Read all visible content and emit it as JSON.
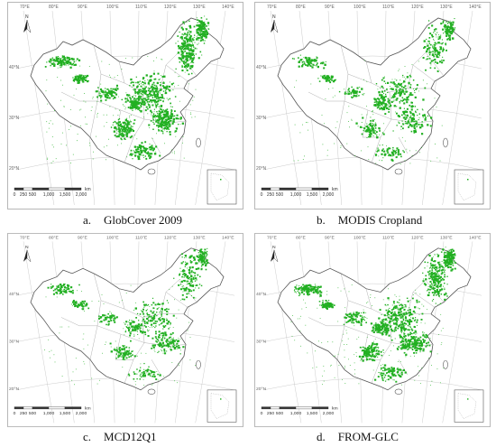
{
  "panels": [
    {
      "letter": "a.",
      "title": "GlobCover 2009",
      "north_label": "N",
      "scale_labels": [
        "0",
        "250",
        "500",
        "1,000",
        "1,500",
        "2,000"
      ],
      "scale_unit": "km",
      "lon_labels": [
        "70°E",
        "80°E",
        "90°E",
        "100°E",
        "110°E",
        "120°E",
        "130°E",
        "140°E"
      ],
      "lat_labels": [
        "40°N",
        "30°N",
        "20°N"
      ],
      "cropland_color": "#22b022",
      "density": "high"
    },
    {
      "letter": "b.",
      "title": "MODIS Cropland",
      "north_label": "N",
      "scale_labels": [
        "0",
        "250",
        "500",
        "1,000",
        "1,500",
        "2,000"
      ],
      "scale_unit": "km",
      "lon_labels": [
        "70°E",
        "80°E",
        "90°E",
        "100°E",
        "110°E",
        "120°E",
        "130°E",
        "140°E"
      ],
      "lat_labels": [
        "40°N",
        "30°N",
        "20°N"
      ],
      "cropland_color": "#22b022",
      "density": "medium"
    },
    {
      "letter": "c.",
      "title": "MCD12Q1",
      "north_label": "N",
      "scale_labels": [
        "0",
        "250",
        "500",
        "1,000",
        "1,500",
        "2,000"
      ],
      "scale_unit": "km",
      "lon_labels": [
        "70°E",
        "80°E",
        "90°E",
        "100°E",
        "110°E",
        "120°E",
        "130°E",
        "140°E"
      ],
      "lat_labels": [
        "40°N",
        "30°N",
        "20°N"
      ],
      "cropland_color": "#22b022",
      "density": "medium"
    },
    {
      "letter": "d.",
      "title": "FROM-GLC",
      "north_label": "N",
      "scale_labels": [
        "0",
        "250",
        "500",
        "1,000",
        "1,500",
        "2,000"
      ],
      "scale_unit": "km",
      "lon_labels": [
        "70°E",
        "80°E",
        "90°E",
        "100°E",
        "110°E",
        "120°E",
        "130°E",
        "140°E"
      ],
      "lat_labels": [
        "40°N",
        "30°N",
        "20°N"
      ],
      "cropland_color": "#22b022",
      "density": "high"
    }
  ]
}
